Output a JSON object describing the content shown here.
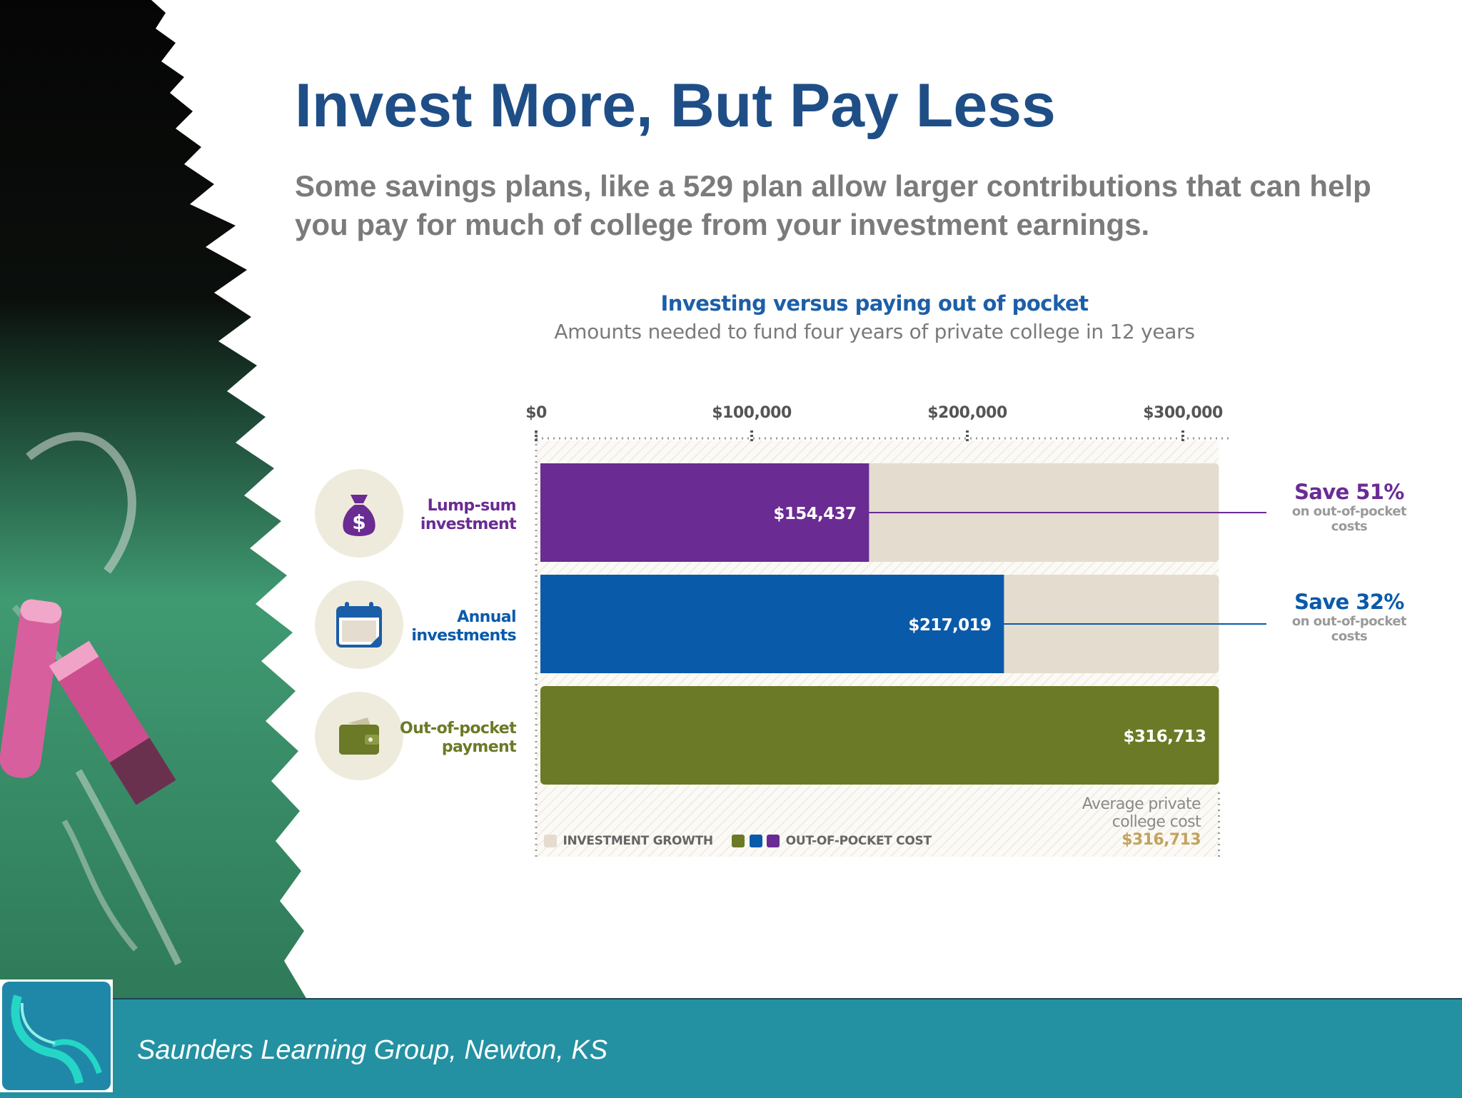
{
  "slide": {
    "title": "Invest More, But Pay Less",
    "subtitle": "Some savings plans, like a 529 plan allow larger contributions that can help you pay for much of college from your investment earnings."
  },
  "chart_data": {
    "type": "bar",
    "orientation": "horizontal",
    "stacked": true,
    "title": "Investing versus paying out of pocket",
    "subtitle": "Amounts needed to fund four years of private college in 12 years",
    "x_ticks": [
      "$0",
      "$100,000",
      "$200,000",
      "$300,000"
    ],
    "xlim": [
      0,
      316713
    ],
    "categories": [
      "Lump-sum investment",
      "Annual investments",
      "Out-of-pocket payment"
    ],
    "series": [
      {
        "name": "OUT-OF-POCKET COST",
        "values": [
          154437,
          217019,
          316713
        ],
        "colors": [
          "#6a2b93",
          "#0a5aaa",
          "#6b7a26"
        ]
      },
      {
        "name": "INVESTMENT GROWTH",
        "values": [
          162276,
          99694,
          0
        ],
        "color": "#e4ddcf"
      }
    ],
    "data_labels": [
      "$154,437",
      "$217,019",
      "$316,713"
    ],
    "row_labels": [
      {
        "line1": "Lump-sum",
        "line2": "investment",
        "color": "#6a2b93",
        "icon": "money-bag-icon"
      },
      {
        "line1": "Annual",
        "line2": "investments",
        "color": "#0a5aaa",
        "icon": "calendar-icon"
      },
      {
        "line1": "Out-of-pocket",
        "line2": "payment",
        "color": "#6b7a26",
        "icon": "wallet-icon"
      }
    ],
    "annotations": [
      {
        "title": "Save 51%",
        "note": "on out-of-pocket costs",
        "color": "#6a2b93"
      },
      {
        "title": "Save 32%",
        "note": "on out-of-pocket costs",
        "color": "#0a5aaa"
      }
    ],
    "reference": {
      "label_line1": "Average private",
      "label_line2": "college cost",
      "value": "$316,713",
      "x": 316713
    },
    "legend": {
      "growth_label": "INVESTMENT GROWTH",
      "cost_label": "OUT-OF-POCKET COST",
      "placement": "bottom-left"
    }
  },
  "footer": {
    "text": "Saunders Learning Group, Newton, KS"
  }
}
